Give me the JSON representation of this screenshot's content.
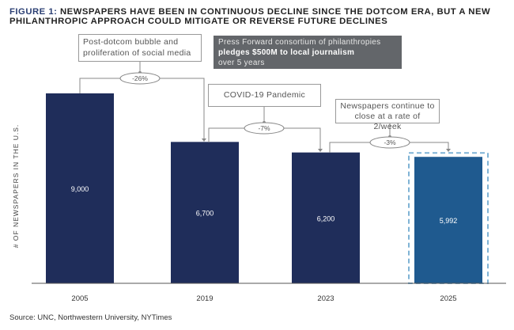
{
  "title": {
    "prefix": "FIGURE 1:",
    "text": "NEWSPAPERS HAVE BEEN IN CONTINUOUS DECLINE SINCE THE DOTCOM ERA, BUT A NEW PHILANTHROPIC APPROACH COULD MITIGATE OR REVERSE FUTURE DECLINES"
  },
  "annotations": {
    "dotcom": "Post-dotcom bubble and proliferation of social media",
    "covid": "COVID-19 Pandemic",
    "continue": "Newspapers continue to close at a rate of 2/week",
    "press_line1": "Press Forward consortium of philanthropies",
    "press_line2": "pledges $500M to local journalism",
    "press_line3": "over 5 years"
  },
  "source": "Source: UNC, Northwestern University, NYTimes",
  "colors": {
    "bar": "#1f2d5a",
    "projected": "#1f5a8f",
    "dash": "#7fb3d5"
  },
  "chart_data": {
    "type": "bar",
    "title": "NEWSPAPERS HAVE BEEN IN CONTINUOUS DECLINE SINCE THE DOTCOM ERA",
    "ylabel": "# OF NEWSPAPERS IN THE U.S.",
    "xlabel": "",
    "ylim": [
      0,
      9000
    ],
    "categories": [
      "2005",
      "2019",
      "2023",
      "2025"
    ],
    "values": [
      9000,
      6700,
      6200,
      5992
    ],
    "value_labels": [
      "9,000",
      "6,700",
      "6,200",
      "5,992"
    ],
    "projected": [
      false,
      false,
      false,
      true
    ],
    "changes": [
      "-26%",
      "-7%",
      "-3%"
    ]
  }
}
